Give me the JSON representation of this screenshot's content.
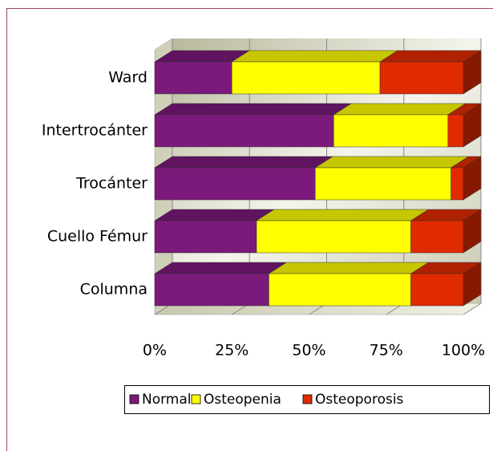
{
  "chart_data": {
    "type": "bar3d_stacked_percent",
    "orientation": "horizontal",
    "categories": [
      "Ward",
      "Intertrocánter",
      "Trocánter",
      "Cuello Fémur",
      "Columna"
    ],
    "series": [
      {
        "name": "Normal",
        "color": "#7b1a7b",
        "values": [
          25,
          58,
          52,
          33,
          37
        ]
      },
      {
        "name": "Osteopenia",
        "color": "#ffff00",
        "values": [
          48,
          37,
          44,
          50,
          46
        ]
      },
      {
        "name": "Osteoporosis",
        "color": "#e02a00",
        "values": [
          27,
          5,
          4,
          17,
          17
        ]
      }
    ],
    "xlim": [
      0,
      100
    ],
    "xticks": [
      {
        "value": 0,
        "label": "0%"
      },
      {
        "value": 25,
        "label": "25%"
      },
      {
        "value": 50,
        "label": "50%"
      },
      {
        "value": 75,
        "label": "75%"
      },
      {
        "value": 100,
        "label": "100%"
      }
    ],
    "grid": true,
    "legend": "bottom"
  }
}
